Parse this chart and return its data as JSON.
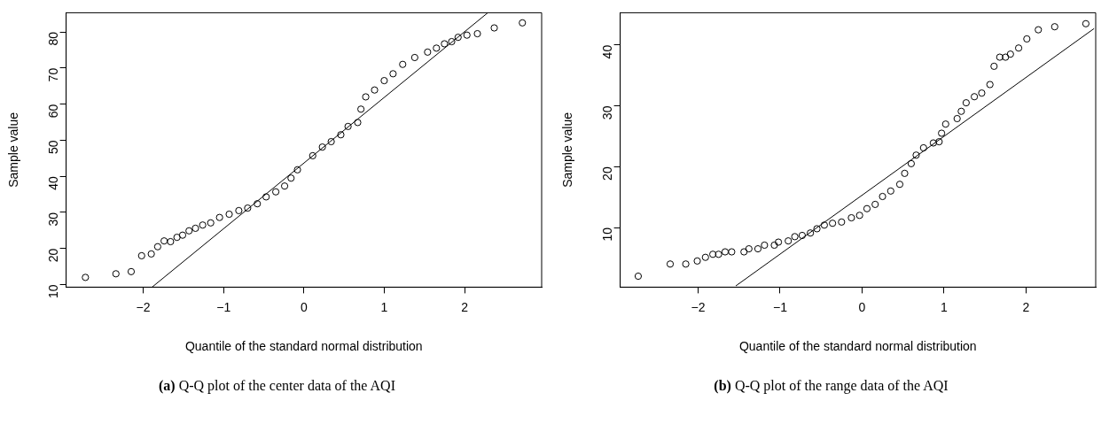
{
  "chart_data": [
    {
      "type": "scatter",
      "xlabel": "Quantile of the standard normal distribution",
      "ylabel": "Sample value",
      "annotations": [
        "(a) Q-Q plot of the center data of the AQI"
      ],
      "xlim": [
        -2.96,
        2.96
      ],
      "ylim": [
        9.3,
        85.3
      ],
      "xticks": [
        -2,
        -1,
        0,
        1,
        2
      ],
      "yticks": [
        10,
        20,
        30,
        40,
        50,
        60,
        70,
        80
      ],
      "grid": false,
      "series": [
        {
          "color": "#000000",
          "marker": "circle",
          "x": [
            -2.72,
            -2.34,
            -2.15,
            -2.02,
            -1.9,
            -1.82,
            -1.74,
            -1.66,
            -1.58,
            -1.51,
            -1.43,
            -1.35,
            -1.26,
            -1.16,
            -1.05,
            -0.93,
            -0.81,
            -0.7,
            -0.58,
            -0.47,
            -0.35,
            -0.24,
            -0.16,
            -0.08,
            0.11,
            0.23,
            0.34,
            0.46,
            0.55,
            0.67,
            0.71,
            0.77,
            0.88,
            1.0,
            1.11,
            1.23,
            1.38,
            1.54,
            1.65,
            1.75,
            1.84,
            1.92,
            2.03,
            2.16,
            2.37,
            2.72
          ],
          "values": [
            12.0,
            13.0,
            13.6,
            18.0,
            18.5,
            20.5,
            22.1,
            21.9,
            23.1,
            23.7,
            24.9,
            25.6,
            26.5,
            27.1,
            28.6,
            29.5,
            30.5,
            31.2,
            32.4,
            34.3,
            35.7,
            37.3,
            39.5,
            41.8,
            45.7,
            48.1,
            49.6,
            51.5,
            53.8,
            54.9,
            58.6,
            62.0,
            63.9,
            66.5,
            68.4,
            71.0,
            72.9,
            74.4,
            75.5,
            76.7,
            77.3,
            78.5,
            79.1,
            79.5,
            81.1,
            82.5
          ]
        },
        {
          "type": "line",
          "color": "#000000",
          "marker": "none",
          "x": [
            -1.89,
            2.29
          ],
          "values": [
            9.3,
            85.3
          ]
        }
      ]
    },
    {
      "type": "scatter",
      "xlabel": "Quantile of the standard normal distribution",
      "ylabel": "Sample value",
      "annotations": [
        "(b) Q-Q plot of the range data of the AQI"
      ],
      "xlim": [
        -2.95,
        2.85
      ],
      "ylim": [
        0.2,
        45.3
      ],
      "xticks": [
        -2,
        -1,
        0,
        1,
        2
      ],
      "yticks": [
        10,
        20,
        30,
        40
      ],
      "grid": false,
      "series": [
        {
          "color": "#000000",
          "marker": "circle",
          "x": [
            -2.73,
            -2.34,
            -2.15,
            -2.01,
            -1.91,
            -1.82,
            -1.75,
            -1.67,
            -1.59,
            -1.44,
            -1.38,
            -1.27,
            -1.19,
            -1.07,
            -1.02,
            -0.9,
            -0.82,
            -0.73,
            -0.63,
            -0.55,
            -0.46,
            -0.36,
            -0.25,
            -0.13,
            -0.03,
            0.06,
            0.16,
            0.25,
            0.35,
            0.46,
            0.52,
            0.6,
            0.66,
            0.75,
            0.87,
            0.94,
            0.97,
            1.02,
            1.16,
            1.21,
            1.27,
            1.37,
            1.46,
            1.56,
            1.61,
            1.68,
            1.75,
            1.81,
            1.91,
            2.01,
            2.15,
            2.35,
            2.73
          ],
          "values": [
            2.0,
            4.0,
            4.0,
            4.5,
            5.1,
            5.6,
            5.6,
            6.0,
            6.0,
            6.0,
            6.5,
            6.5,
            7.1,
            7.1,
            7.6,
            7.8,
            8.5,
            8.7,
            9.1,
            9.8,
            10.4,
            10.7,
            10.9,
            11.6,
            12.0,
            13.1,
            13.8,
            15.1,
            16.0,
            17.1,
            18.9,
            20.5,
            21.9,
            23.1,
            23.9,
            24.1,
            25.5,
            27.0,
            27.9,
            29.1,
            30.5,
            31.5,
            32.1,
            33.5,
            36.5,
            38.0,
            38.0,
            38.5,
            39.5,
            41.0,
            42.5,
            43.0,
            43.5
          ]
        },
        {
          "type": "line",
          "color": "#000000",
          "marker": "none",
          "x": [
            -1.54,
            2.83
          ],
          "values": [
            0.4,
            42.7
          ]
        }
      ]
    }
  ]
}
